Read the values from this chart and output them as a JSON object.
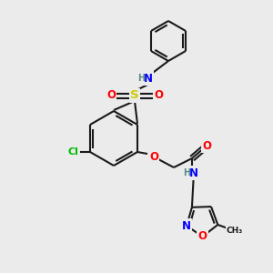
{
  "bg_color": "#ebebeb",
  "bond_color": "#1a1a1a",
  "atom_colors": {
    "N": "#0000ff",
    "O": "#ff0000",
    "S": "#cccc00",
    "Cl": "#00bb00",
    "H": "#5a8a8a",
    "C": "#1a1a1a"
  },
  "font_size": 8.5,
  "small_font": 7
}
